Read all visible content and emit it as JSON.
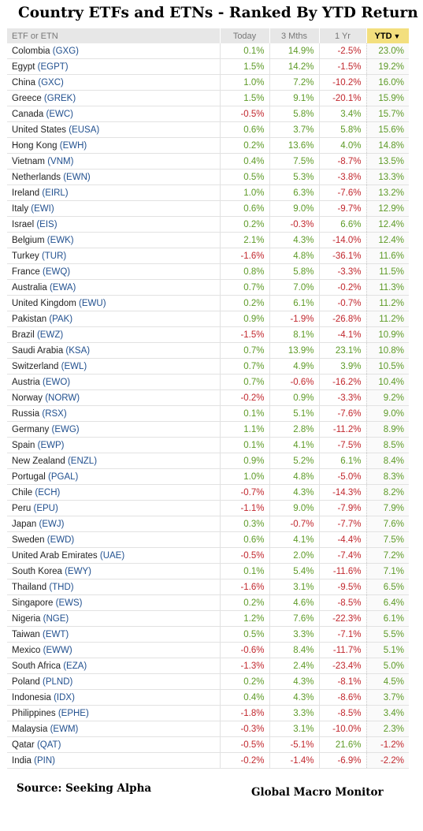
{
  "title": "Country ETFs and ETNs - Ranked By YTD Return",
  "columns": {
    "name": "ETF or ETN",
    "today": "Today",
    "m3": "3 Mths",
    "y1": "1 Yr",
    "ytd": "YTD",
    "sort_indicator_icon": "caret-down-icon"
  },
  "colors": {
    "positive": "#5d9a26",
    "negative": "#c1272d",
    "ticker": "#21508f",
    "sort_header": "#f3df7e"
  },
  "rows": [
    {
      "country": "Colombia",
      "ticker": "(GXG)",
      "today": "0.1%",
      "m3": "14.9%",
      "y1": "-2.5%",
      "ytd": "23.0%"
    },
    {
      "country": "Egypt",
      "ticker": "(EGPT)",
      "today": "1.5%",
      "m3": "14.2%",
      "y1": "-1.5%",
      "ytd": "19.2%"
    },
    {
      "country": "China",
      "ticker": "(GXC)",
      "today": "1.0%",
      "m3": "7.2%",
      "y1": "-10.2%",
      "ytd": "16.0%"
    },
    {
      "country": "Greece",
      "ticker": "(GREK)",
      "today": "1.5%",
      "m3": "9.1%",
      "y1": "-20.1%",
      "ytd": "15.9%"
    },
    {
      "country": "Canada",
      "ticker": "(EWC)",
      "today": "-0.5%",
      "m3": "5.8%",
      "y1": "3.4%",
      "ytd": "15.7%"
    },
    {
      "country": "United States",
      "ticker": "(EUSA)",
      "today": "0.6%",
      "m3": "3.7%",
      "y1": "5.8%",
      "ytd": "15.6%"
    },
    {
      "country": "Hong Kong",
      "ticker": "(EWH)",
      "today": "0.2%",
      "m3": "13.6%",
      "y1": "4.0%",
      "ytd": "14.8%"
    },
    {
      "country": "Vietnam",
      "ticker": "(VNM)",
      "today": "0.4%",
      "m3": "7.5%",
      "y1": "-8.7%",
      "ytd": "13.5%"
    },
    {
      "country": "Netherlands",
      "ticker": "(EWN)",
      "today": "0.5%",
      "m3": "5.3%",
      "y1": "-3.8%",
      "ytd": "13.3%"
    },
    {
      "country": "Ireland",
      "ticker": "(EIRL)",
      "today": "1.0%",
      "m3": "6.3%",
      "y1": "-7.6%",
      "ytd": "13.2%"
    },
    {
      "country": "Italy",
      "ticker": "(EWI)",
      "today": "0.6%",
      "m3": "9.0%",
      "y1": "-9.7%",
      "ytd": "12.9%"
    },
    {
      "country": "Israel",
      "ticker": "(EIS)",
      "today": "0.2%",
      "m3": "-0.3%",
      "y1": "6.6%",
      "ytd": "12.4%"
    },
    {
      "country": "Belgium",
      "ticker": "(EWK)",
      "today": "2.1%",
      "m3": "4.3%",
      "y1": "-14.0%",
      "ytd": "12.4%"
    },
    {
      "country": "Turkey",
      "ticker": "(TUR)",
      "today": "-1.6%",
      "m3": "4.8%",
      "y1": "-36.1%",
      "ytd": "11.6%"
    },
    {
      "country": "France",
      "ticker": "(EWQ)",
      "today": "0.8%",
      "m3": "5.8%",
      "y1": "-3.3%",
      "ytd": "11.5%"
    },
    {
      "country": "Australia",
      "ticker": "(EWA)",
      "today": "0.7%",
      "m3": "7.0%",
      "y1": "-0.2%",
      "ytd": "11.3%"
    },
    {
      "country": "United Kingdom",
      "ticker": "(EWU)",
      "today": "0.2%",
      "m3": "6.1%",
      "y1": "-0.7%",
      "ytd": "11.2%"
    },
    {
      "country": "Pakistan",
      "ticker": "(PAK)",
      "today": "0.9%",
      "m3": "-1.9%",
      "y1": "-26.8%",
      "ytd": "11.2%"
    },
    {
      "country": "Brazil",
      "ticker": "(EWZ)",
      "today": "-1.5%",
      "m3": "8.1%",
      "y1": "-4.1%",
      "ytd": "10.9%"
    },
    {
      "country": "Saudi Arabia",
      "ticker": "(KSA)",
      "today": "0.7%",
      "m3": "13.9%",
      "y1": "23.1%",
      "ytd": "10.8%"
    },
    {
      "country": "Switzerland",
      "ticker": "(EWL)",
      "today": "0.7%",
      "m3": "4.9%",
      "y1": "3.9%",
      "ytd": "10.5%"
    },
    {
      "country": "Austria",
      "ticker": "(EWO)",
      "today": "0.7%",
      "m3": "-0.6%",
      "y1": "-16.2%",
      "ytd": "10.4%"
    },
    {
      "country": "Norway",
      "ticker": "(NORW)",
      "today": "-0.2%",
      "m3": "0.9%",
      "y1": "-3.3%",
      "ytd": "9.2%"
    },
    {
      "country": "Russia",
      "ticker": "(RSX)",
      "today": "0.1%",
      "m3": "5.1%",
      "y1": "-7.6%",
      "ytd": "9.0%"
    },
    {
      "country": "Germany",
      "ticker": "(EWG)",
      "today": "1.1%",
      "m3": "2.8%",
      "y1": "-11.2%",
      "ytd": "8.9%"
    },
    {
      "country": "Spain",
      "ticker": "(EWP)",
      "today": "0.1%",
      "m3": "4.1%",
      "y1": "-7.5%",
      "ytd": "8.5%"
    },
    {
      "country": "New Zealand",
      "ticker": "(ENZL)",
      "today": "0.9%",
      "m3": "5.2%",
      "y1": "6.1%",
      "ytd": "8.4%"
    },
    {
      "country": "Portugal",
      "ticker": "(PGAL)",
      "today": "1.0%",
      "m3": "4.8%",
      "y1": "-5.0%",
      "ytd": "8.3%"
    },
    {
      "country": "Chile",
      "ticker": "(ECH)",
      "today": "-0.7%",
      "m3": "4.3%",
      "y1": "-14.3%",
      "ytd": "8.2%"
    },
    {
      "country": "Peru",
      "ticker": "(EPU)",
      "today": "-1.1%",
      "m3": "9.0%",
      "y1": "-7.9%",
      "ytd": "7.9%"
    },
    {
      "country": "Japan",
      "ticker": "(EWJ)",
      "today": "0.3%",
      "m3": "-0.7%",
      "y1": "-7.7%",
      "ytd": "7.6%"
    },
    {
      "country": "Sweden",
      "ticker": "(EWD)",
      "today": "0.6%",
      "m3": "4.1%",
      "y1": "-4.4%",
      "ytd": "7.5%"
    },
    {
      "country": "United Arab Emirates",
      "ticker": "(UAE)",
      "today": "-0.5%",
      "m3": "2.0%",
      "y1": "-7.4%",
      "ytd": "7.2%"
    },
    {
      "country": "South Korea",
      "ticker": "(EWY)",
      "today": "0.1%",
      "m3": "5.4%",
      "y1": "-11.6%",
      "ytd": "7.1%"
    },
    {
      "country": "Thailand",
      "ticker": "(THD)",
      "today": "-1.6%",
      "m3": "3.1%",
      "y1": "-9.5%",
      "ytd": "6.5%"
    },
    {
      "country": "Singapore",
      "ticker": "(EWS)",
      "today": "0.2%",
      "m3": "4.6%",
      "y1": "-8.5%",
      "ytd": "6.4%"
    },
    {
      "country": "Nigeria",
      "ticker": "(NGE)",
      "today": "1.2%",
      "m3": "7.6%",
      "y1": "-22.3%",
      "ytd": "6.1%"
    },
    {
      "country": "Taiwan",
      "ticker": "(EWT)",
      "today": "0.5%",
      "m3": "3.3%",
      "y1": "-7.1%",
      "ytd": "5.5%"
    },
    {
      "country": "Mexico",
      "ticker": "(EWW)",
      "today": "-0.6%",
      "m3": "8.4%",
      "y1": "-11.7%",
      "ytd": "5.1%"
    },
    {
      "country": "South Africa",
      "ticker": "(EZA)",
      "today": "-1.3%",
      "m3": "2.4%",
      "y1": "-23.4%",
      "ytd": "5.0%"
    },
    {
      "country": "Poland",
      "ticker": "(PLND)",
      "today": "0.2%",
      "m3": "4.3%",
      "y1": "-8.1%",
      "ytd": "4.5%"
    },
    {
      "country": "Indonesia",
      "ticker": "(IDX)",
      "today": "0.4%",
      "m3": "4.3%",
      "y1": "-8.6%",
      "ytd": "3.7%"
    },
    {
      "country": "Philippines",
      "ticker": "(EPHE)",
      "today": "-1.8%",
      "m3": "3.3%",
      "y1": "-8.5%",
      "ytd": "3.4%"
    },
    {
      "country": "Malaysia",
      "ticker": "(EWM)",
      "today": "-0.3%",
      "m3": "3.1%",
      "y1": "-10.0%",
      "ytd": "2.3%"
    },
    {
      "country": "Qatar",
      "ticker": "(QAT)",
      "today": "-0.5%",
      "m3": "-5.1%",
      "y1": "21.6%",
      "ytd": "-1.2%"
    },
    {
      "country": "India",
      "ticker": "(PIN)",
      "today": "-0.2%",
      "m3": "-1.4%",
      "y1": "-6.9%",
      "ytd": "-2.2%"
    }
  ],
  "footer": {
    "source": "Source:  Seeking Alpha",
    "brand": "Global Macro Monitor"
  }
}
